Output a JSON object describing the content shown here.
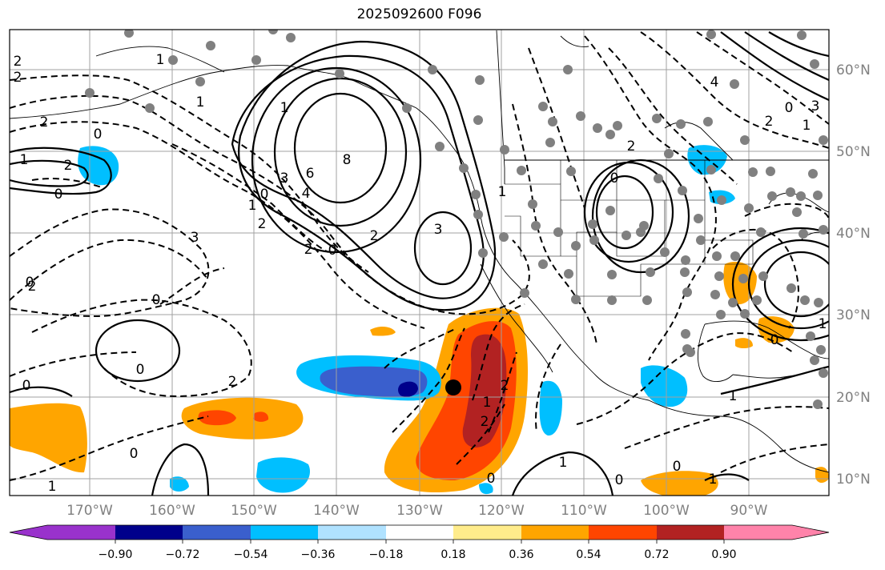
{
  "title": "2025092600 F096",
  "map": {
    "lon_labels": [
      "170°W",
      "160°W",
      "150°W",
      "140°W",
      "130°W",
      "120°W",
      "110°W",
      "100°W",
      "90°W"
    ],
    "lat_labels": [
      "60°N",
      "50°N",
      "40°N",
      "30°N",
      "20°N",
      "10°N"
    ],
    "marker": "storm-center"
  },
  "contour_labels": [
    {
      "text": "2",
      "key": "a"
    },
    {
      "text": "2",
      "key": "b"
    },
    {
      "text": "1",
      "key": "c"
    },
    {
      "text": "2",
      "key": "d"
    },
    {
      "text": "0",
      "key": "e"
    },
    {
      "text": "1",
      "key": "f"
    },
    {
      "text": "2",
      "key": "g"
    },
    {
      "text": "0",
      "key": "h"
    },
    {
      "text": "1",
      "key": "i"
    },
    {
      "text": "8",
      "key": "j"
    },
    {
      "text": "6",
      "key": "k"
    },
    {
      "text": "4",
      "key": "l"
    },
    {
      "text": "3",
      "key": "m"
    },
    {
      "text": "0",
      "key": "n"
    },
    {
      "text": "1",
      "key": "o"
    },
    {
      "text": "2",
      "key": "p"
    },
    {
      "text": "3",
      "key": "q"
    },
    {
      "text": "2",
      "key": "r"
    },
    {
      "text": "3",
      "key": "s"
    },
    {
      "text": "0",
      "key": "t"
    },
    {
      "text": "1",
      "key": "u"
    },
    {
      "text": "2",
      "key": "v"
    },
    {
      "text": "0",
      "key": "w"
    },
    {
      "text": "0",
      "key": "x"
    },
    {
      "text": "2",
      "key": "y"
    },
    {
      "text": "0",
      "key": "z"
    },
    {
      "text": "0",
      "key": "aa"
    },
    {
      "text": "0",
      "key": "ab"
    },
    {
      "text": "1",
      "key": "ac"
    },
    {
      "text": "2",
      "key": "ad"
    },
    {
      "text": "2",
      "key": "ae"
    },
    {
      "text": "1",
      "key": "af"
    },
    {
      "text": "0",
      "key": "ag"
    },
    {
      "text": "2",
      "key": "ah"
    },
    {
      "text": "1",
      "key": "ai"
    },
    {
      "text": "0",
      "key": "aj"
    },
    {
      "text": "1",
      "key": "ak"
    },
    {
      "text": "0",
      "key": "al"
    },
    {
      "text": "4",
      "key": "am"
    },
    {
      "text": "2",
      "key": "an"
    },
    {
      "text": "3",
      "key": "ao"
    },
    {
      "text": "0",
      "key": "ap"
    },
    {
      "text": "1",
      "key": "aq"
    },
    {
      "text": "2",
      "key": "ar"
    },
    {
      "text": "1",
      "key": "as"
    },
    {
      "text": "1",
      "key": "at"
    },
    {
      "text": "0",
      "key": "au"
    },
    {
      "text": "0",
      "key": "av"
    },
    {
      "text": "1",
      "key": "aw"
    }
  ],
  "colorbar": {
    "ticks": [
      "−0.90",
      "−0.72",
      "−0.54",
      "−0.36",
      "−0.18",
      "0.18",
      "0.36",
      "0.54",
      "0.72",
      "0.90"
    ],
    "colors": [
      "#9932cc",
      "#00008b",
      "#3a5fcd",
      "#00bfff",
      "#b0e2ff",
      "#ffffff",
      "#ffec8b",
      "#ffa500",
      "#ff4500",
      "#b22222",
      "#ff83aa"
    ]
  }
}
